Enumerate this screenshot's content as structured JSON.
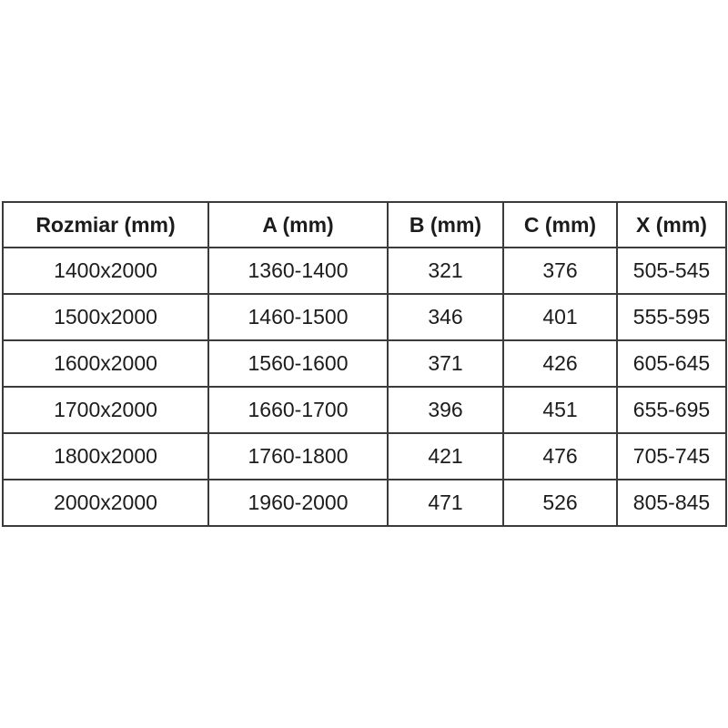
{
  "page": {
    "background": "#ffffff"
  },
  "table": {
    "colors": {
      "border": "#3b3b3b",
      "text": "#1c1c1c",
      "background": "#ffffff"
    },
    "headers": [
      "Rozmiar (mm)",
      "A (mm)",
      "B (mm)",
      "C (mm)",
      "X (mm)"
    ],
    "rows": [
      [
        "1400x2000",
        "1360-1400",
        "321",
        "376",
        "505-545"
      ],
      [
        "1500x2000",
        "1460-1500",
        "346",
        "401",
        "555-595"
      ],
      [
        "1600x2000",
        "1560-1600",
        "371",
        "426",
        "605-645"
      ],
      [
        "1700x2000",
        "1660-1700",
        "396",
        "451",
        "655-695"
      ],
      [
        "1800x2000",
        "1760-1800",
        "421",
        "476",
        "705-745"
      ],
      [
        "2000x2000",
        "1960-2000",
        "471",
        "526",
        "805-845"
      ]
    ]
  }
}
